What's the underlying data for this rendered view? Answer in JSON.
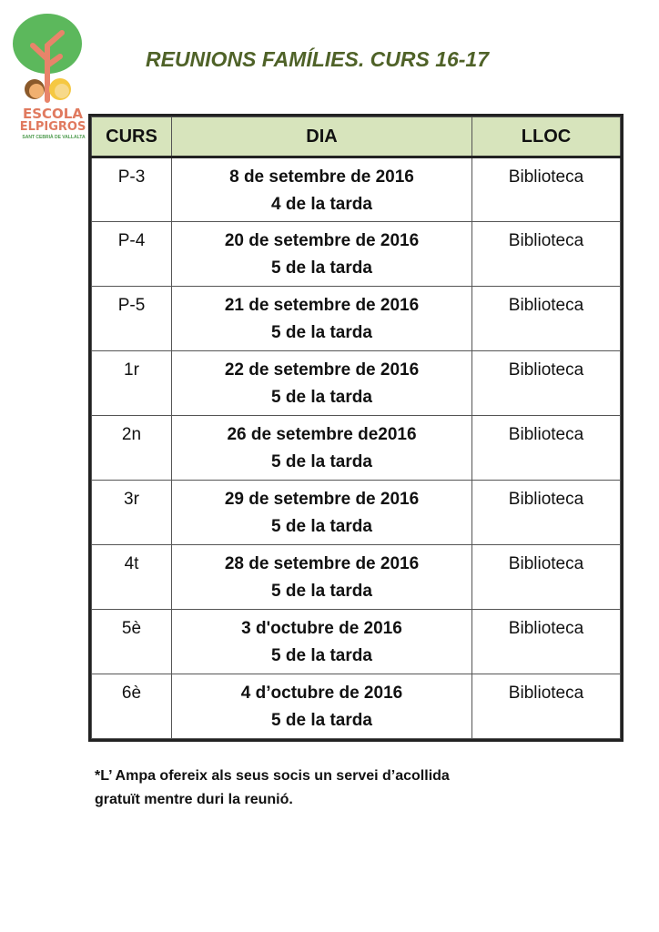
{
  "logo": {
    "line1": "ESCOLA",
    "line2": "ELPIGROS",
    "line3": "SANT CEBRIÀ DE VALLALTA"
  },
  "title": "REUNIONS FAMÍLIES. CURS 16-17",
  "table": {
    "headers": [
      "CURS",
      "DIA",
      "LLOC"
    ],
    "rows": [
      {
        "curs": "P-3",
        "dia": "8 de setembre de 2016",
        "hora": "4 de la tarda",
        "lloc": "Biblioteca"
      },
      {
        "curs": "P-4",
        "dia": "20 de setembre de 2016",
        "hora": "5 de la tarda",
        "lloc": "Biblioteca"
      },
      {
        "curs": "P-5",
        "dia": "21 de setembre de 2016",
        "hora": "5 de la tarda",
        "lloc": "Biblioteca"
      },
      {
        "curs": "1r",
        "dia": "22 de setembre de 2016",
        "hora": "5 de la tarda",
        "lloc": "Biblioteca"
      },
      {
        "curs": "2n",
        "dia": "26 de setembre de2016",
        "hora": "5 de la tarda",
        "lloc": "Biblioteca"
      },
      {
        "curs": "3r",
        "dia": "29 de setembre de 2016",
        "hora": "5 de la tarda",
        "lloc": "Biblioteca"
      },
      {
        "curs": "4t",
        "dia": "28 de setembre de 2016",
        "hora": "5 de la tarda",
        "lloc": "Biblioteca"
      },
      {
        "curs": "5è",
        "dia": "3 d'octubre de 2016",
        "hora": "5 de la tarda",
        "lloc": "Biblioteca"
      },
      {
        "curs": "6è",
        "dia": "4 d’octubre de 2016",
        "hora": "5 de la tarda",
        "lloc": "Biblioteca"
      }
    ]
  },
  "note": {
    "line1": "*L’ Ampa ofereix als seus socis  un servei d’acollida",
    "line2": "gratuït mentre duri la reunió."
  },
  "colors": {
    "title": "#4f6228",
    "header_bg": "#d7e4bc",
    "logo_orange": "#e07a5f",
    "logo_green": "#5cb85c"
  }
}
